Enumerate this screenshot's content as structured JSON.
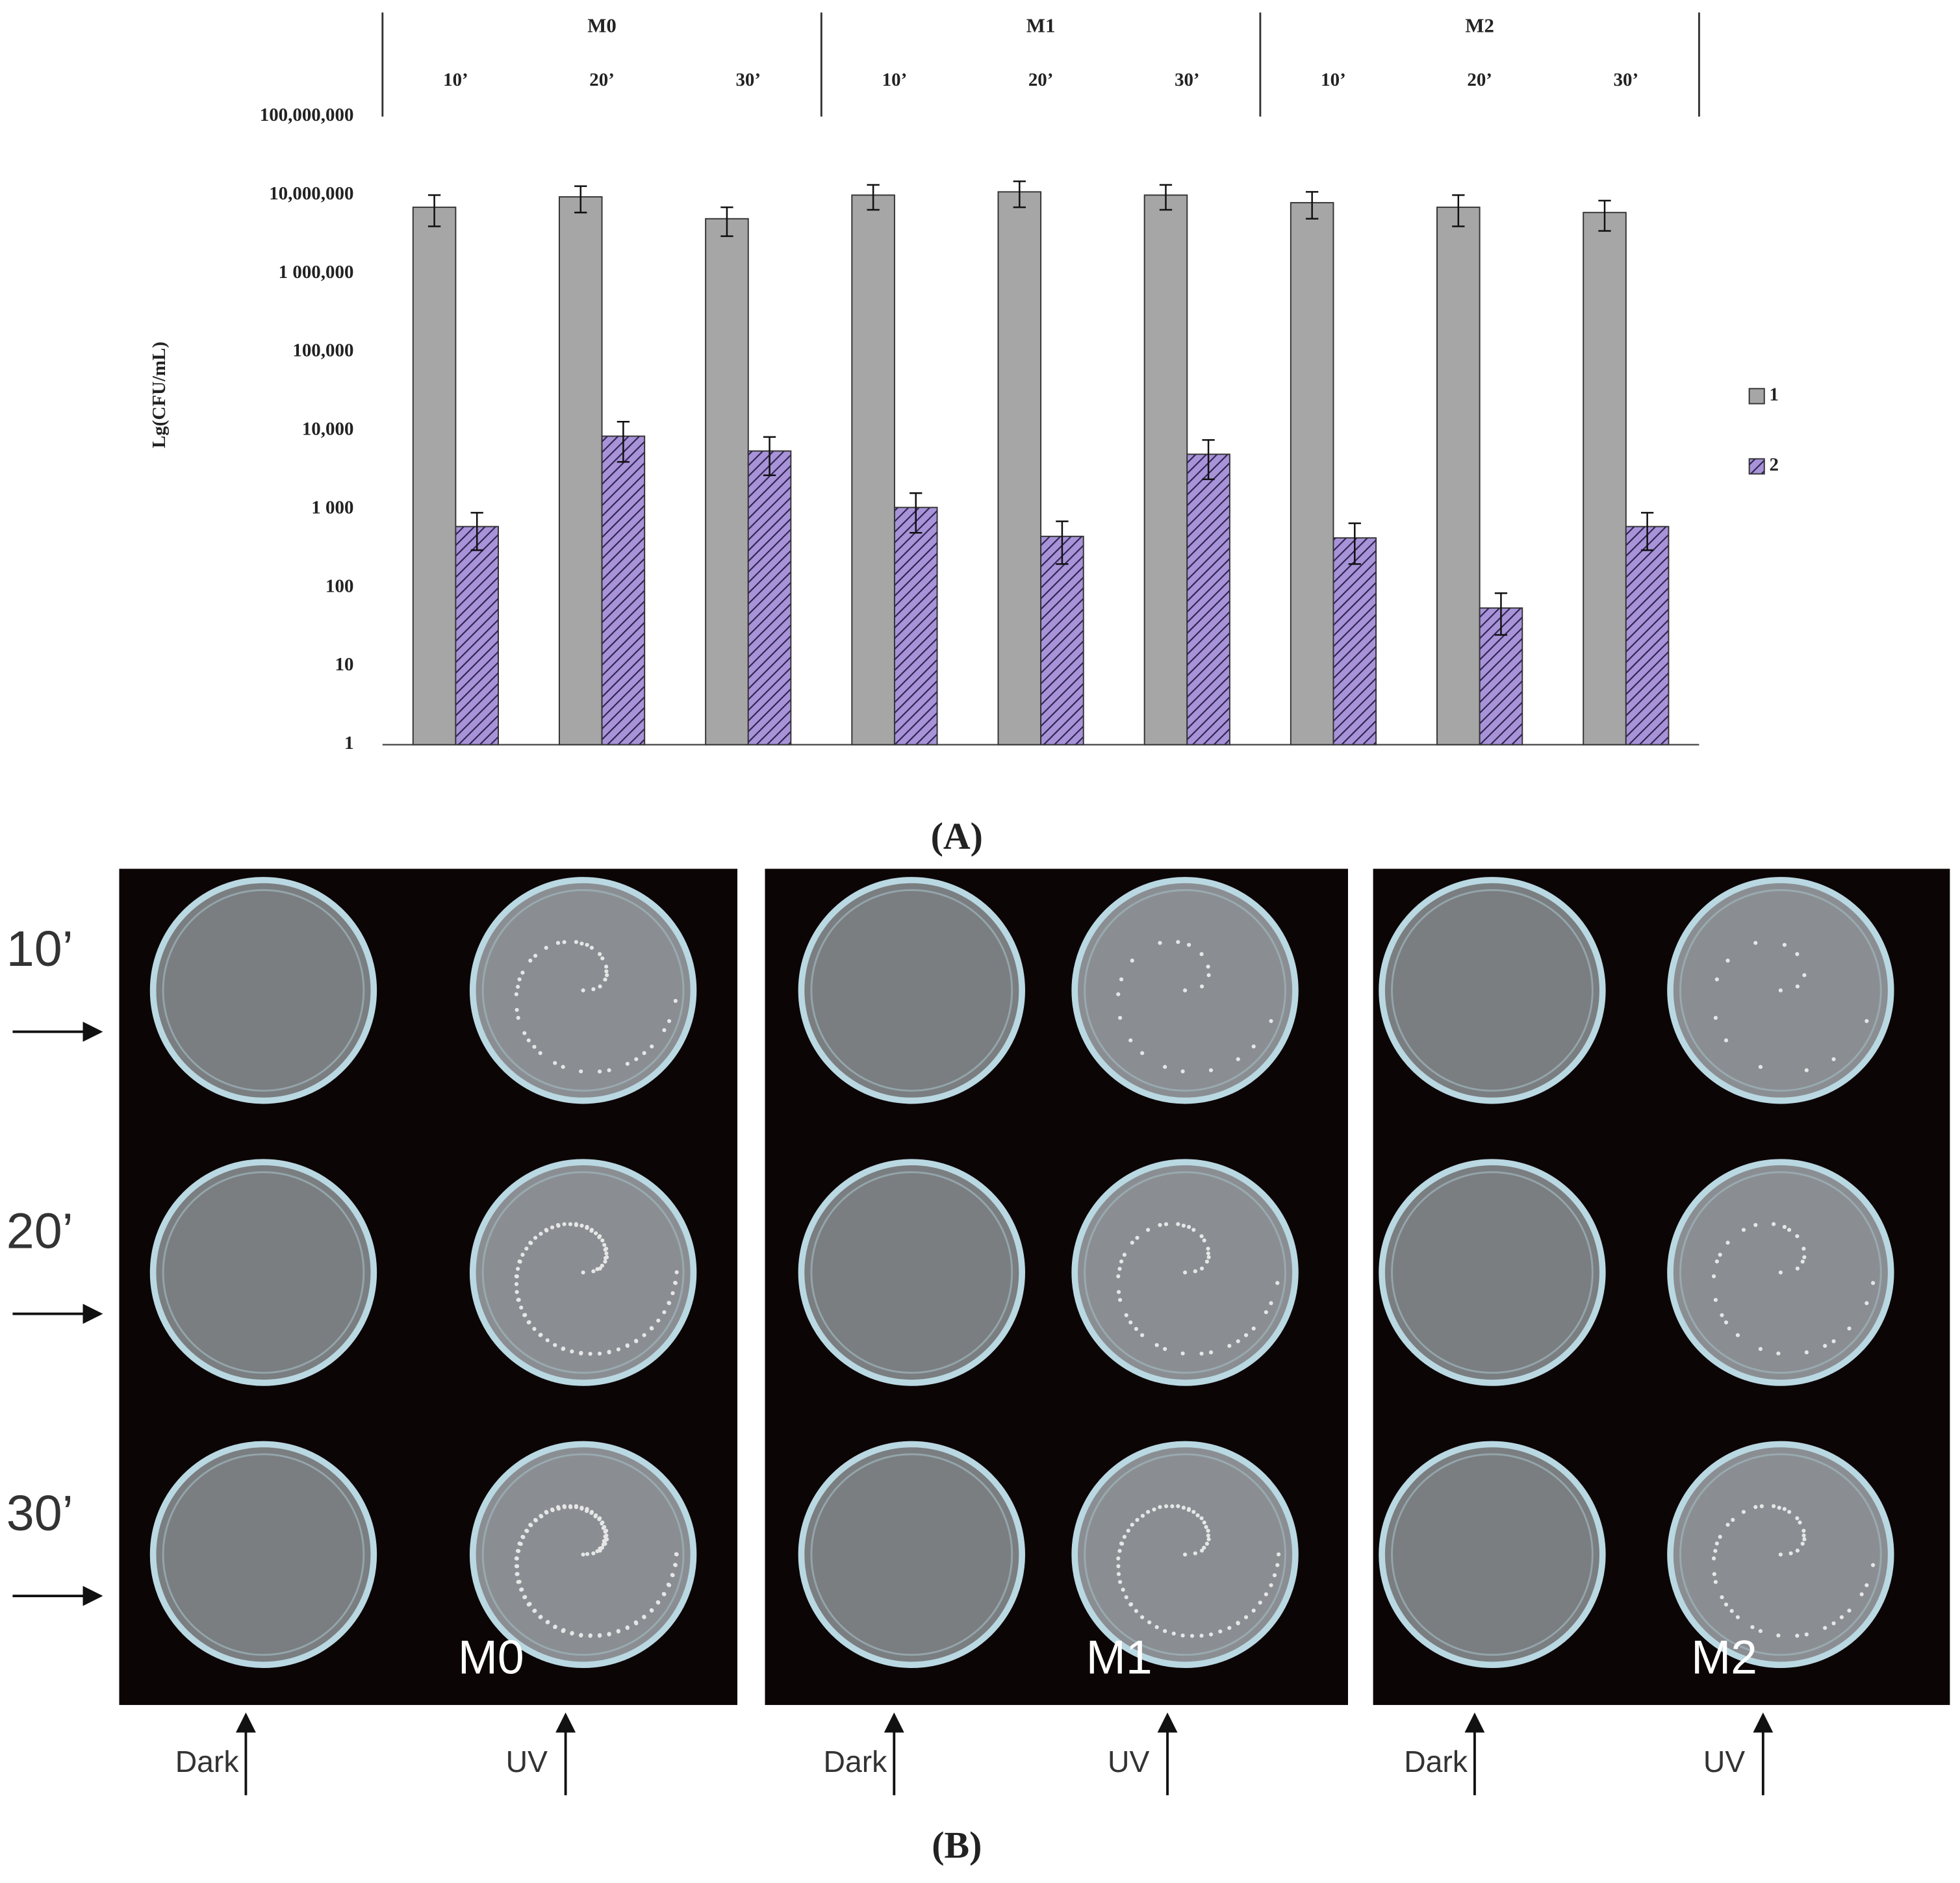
{
  "chart_data": {
    "type": "bar",
    "log_scale": true,
    "ylabel": "Lg(CFU/mL)",
    "groups": [
      "M0",
      "M1",
      "M2"
    ],
    "categories": [
      "10’",
      "20’",
      "30’",
      "10’",
      "20’",
      "30’",
      "10’",
      "20’",
      "30’"
    ],
    "series": [
      {
        "name": "1",
        "color": "#a6a6a6",
        "pattern": "solid",
        "values": [
          7000000,
          9500000,
          5000000,
          10000000,
          11000000,
          10000000,
          8000000,
          7000000,
          6000000
        ],
        "errors": [
          3000000,
          3500000,
          2000000,
          3500000,
          4000000,
          3500000,
          3000000,
          3000000,
          2500000
        ]
      },
      {
        "name": "2",
        "color": "#a893d8",
        "pattern": "hatch",
        "values": [
          600,
          8500,
          5500,
          1050,
          450,
          5000,
          430,
          55,
          600
        ],
        "errors": [
          300,
          4500,
          2800,
          550,
          250,
          2600,
          230,
          30,
          300
        ]
      }
    ],
    "ylim": [
      1,
      100000000
    ],
    "yticks": [
      {
        "value": 100000000,
        "label": "100,000,000"
      },
      {
        "value": 10000000,
        "label": "10,000,000"
      },
      {
        "value": 1000000,
        "label": "1 000,000"
      },
      {
        "value": 100000,
        "label": "100,000"
      },
      {
        "value": 10000,
        "label": "10,000"
      },
      {
        "value": 1000,
        "label": "1 000"
      },
      100,
      10,
      1
    ],
    "legend": "right"
  },
  "panel_a_label": "(A)",
  "panel_b_label": "(B)",
  "photos": {
    "rows": [
      "10’",
      "20’",
      "30’"
    ],
    "panels": [
      {
        "label": "M0",
        "columns": [
          "Dark",
          "UV"
        ]
      },
      {
        "label": "M1",
        "columns": [
          "Dark",
          "UV"
        ]
      },
      {
        "label": "M2",
        "columns": [
          "Dark",
          "UV"
        ]
      }
    ]
  }
}
